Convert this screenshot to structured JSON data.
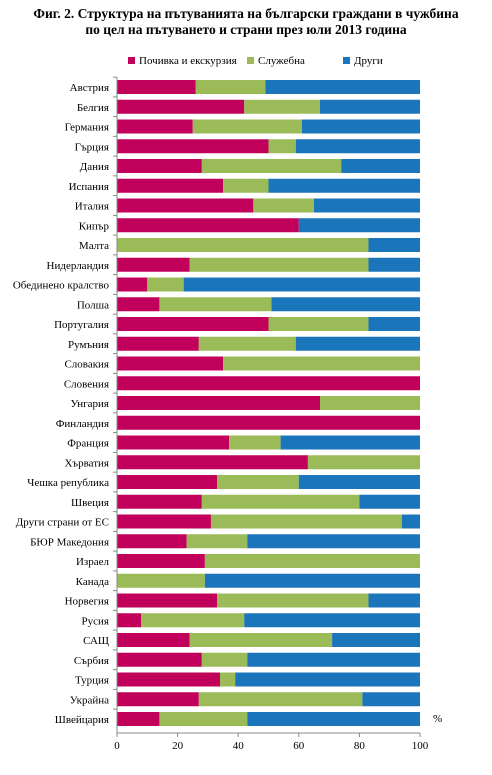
{
  "title_line1": "Фиг. 2. Структура на пътуванията на български граждани в чужбина",
  "title_line2": "по цел на пътуването и страни през юли 2013 година",
  "chart_data": {
    "type": "bar",
    "orientation": "horizontal",
    "stacked": true,
    "title": "Фиг. 2. Структура на пътуванията на български граждани в чужбина по цел на пътуването и страни през юли 2013 година",
    "xlabel": "",
    "ylabel": "",
    "unit": "%",
    "xlim": [
      0,
      100
    ],
    "x_ticks": [
      "0",
      "20",
      "40",
      "60",
      "80",
      "100"
    ],
    "legend_position": "top",
    "grid": false,
    "categories": [
      "Австрия",
      "Белгия",
      "Германия",
      "Гърция",
      "Дания",
      "Испания",
      "Италия",
      "Кипър",
      "Малта",
      "Нидерландия",
      "Обединено кралство",
      "Полша",
      "Португалия",
      "Румъния",
      "Словакия",
      "Словения",
      "Унгария",
      "Финландия",
      "Франция",
      "Хърватия",
      "Чешка република",
      "Швеция",
      "Други страни от ЕС",
      "БЮР Македония",
      "Израел",
      "Канада",
      "Норвегия",
      "Русия",
      "САЩ",
      "Сърбия",
      "Турция",
      "Украйна",
      "Швейцария"
    ],
    "series": [
      {
        "name": "Почивка и екскурзия",
        "color": "#c0005a",
        "values": [
          26,
          42,
          25,
          50,
          28,
          35,
          45,
          60,
          0,
          24,
          10,
          14,
          50,
          27,
          35,
          100,
          67,
          100,
          37,
          63,
          33,
          28,
          31,
          23,
          29,
          0,
          33,
          8,
          24,
          28,
          34,
          27,
          14
        ]
      },
      {
        "name": "Служебна",
        "color": "#9bbb59",
        "values": [
          23,
          25,
          36,
          9,
          46,
          15,
          20,
          0,
          83,
          59,
          12,
          37,
          33,
          32,
          65,
          0,
          33,
          0,
          17,
          37,
          27,
          52,
          63,
          20,
          71,
          29,
          50,
          34,
          47,
          15,
          5,
          54,
          29
        ]
      },
      {
        "name": "Други",
        "color": "#1b75bb",
        "values": [
          51,
          33,
          39,
          41,
          26,
          50,
          35,
          40,
          17,
          17,
          78,
          49,
          17,
          41,
          0,
          0,
          0,
          0,
          46,
          0,
          40,
          20,
          6,
          57,
          0,
          71,
          17,
          58,
          29,
          57,
          61,
          19,
          57
        ]
      }
    ]
  }
}
